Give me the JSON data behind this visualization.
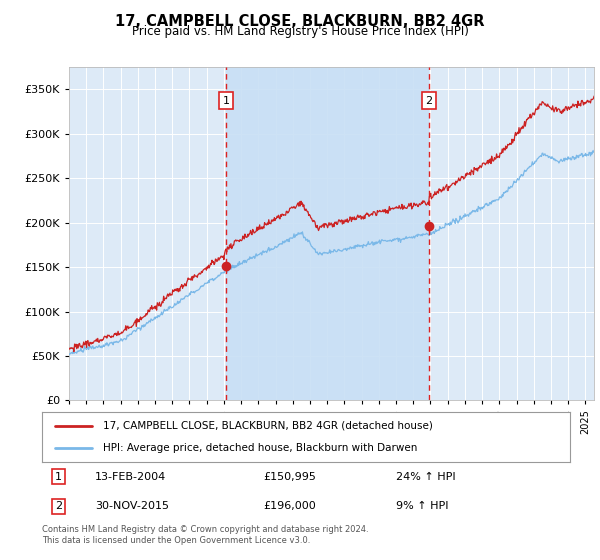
{
  "title": "17, CAMPBELL CLOSE, BLACKBURN, BB2 4GR",
  "subtitle": "Price paid vs. HM Land Registry's House Price Index (HPI)",
  "legend_line1": "17, CAMPBELL CLOSE, BLACKBURN, BB2 4GR (detached house)",
  "legend_line2": "HPI: Average price, detached house, Blackburn with Darwen",
  "annotation1_label": "1",
  "annotation1_date": "13-FEB-2004",
  "annotation1_price": 150995,
  "annotation1_hpi": "24% ↑ HPI",
  "annotation1_year": 2004.12,
  "annotation2_label": "2",
  "annotation2_date": "30-NOV-2015",
  "annotation2_price": 196000,
  "annotation2_hpi": "9% ↑ HPI",
  "annotation2_year": 2015.92,
  "footer1": "Contains HM Land Registry data © Crown copyright and database right 2024.",
  "footer2": "This data is licensed under the Open Government Licence v3.0.",
  "hpi_color": "#7ab8e8",
  "price_color": "#cc2222",
  "bg_color": "#ddeaf7",
  "shade_color": "#c8dff5",
  "vline_color": "#dd2222",
  "ylim_min": 0,
  "ylim_max": 375000,
  "yticks": [
    0,
    50000,
    100000,
    150000,
    200000,
    250000,
    300000,
    350000
  ],
  "xmin": 1995.0,
  "xmax": 2025.5
}
